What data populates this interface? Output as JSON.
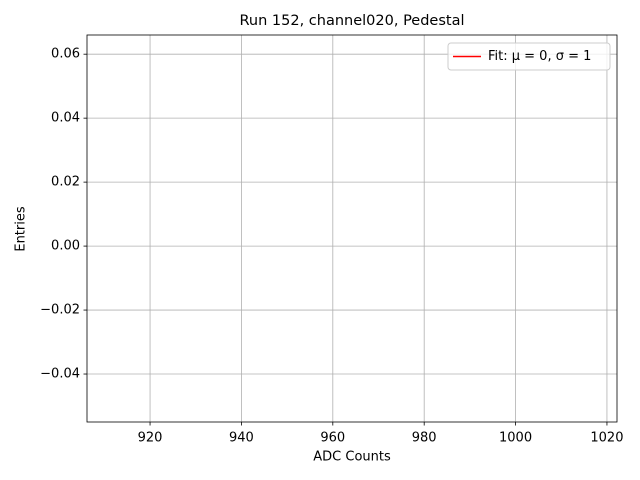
{
  "chart_data": {
    "type": "line",
    "title": "Run 152, channel020, Pedestal",
    "xlabel": "ADC Counts",
    "ylabel": "Entries",
    "xlim": [
      906.2,
      1022.2
    ],
    "xticks": [
      920,
      940,
      960,
      980,
      1000,
      1020
    ],
    "ylim": [
      -0.055,
      0.066
    ],
    "yticks": [
      {
        "value": -0.04,
        "label": "−0.04"
      },
      {
        "value": -0.02,
        "label": "−0.02"
      },
      {
        "value": 0,
        "label": "0.00"
      },
      0.02,
      0.04,
      0.06
    ],
    "grid": true,
    "legend": "upper right",
    "series": [
      {
        "name": "Fit: μ = 0, σ = 1",
        "color": "#ff0000",
        "x": [],
        "values": []
      }
    ]
  }
}
